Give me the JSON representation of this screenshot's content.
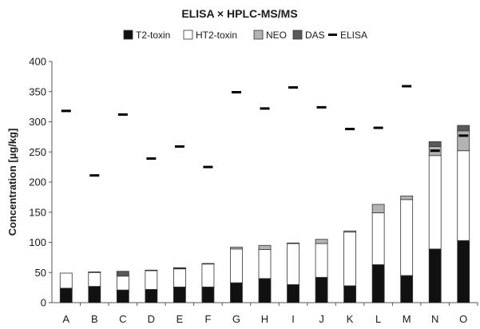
{
  "chart_data": {
    "type": "bar",
    "stacked": true,
    "title": "ELISA × HPLC-MS/MS",
    "xlabel": "",
    "ylabel": "Concentration [µg/kg]",
    "ylim": [
      0,
      400
    ],
    "yticks": [
      0,
      50,
      100,
      150,
      200,
      250,
      300,
      350,
      400
    ],
    "legend_position": "top",
    "categories": [
      "A",
      "B",
      "C",
      "D",
      "E",
      "F",
      "G",
      "H",
      "I",
      "J",
      "K",
      "L",
      "M",
      "N",
      "O"
    ],
    "series": [
      {
        "name": "T2-toxin",
        "color": "#111111",
        "values": [
          24,
          27,
          21,
          22,
          26,
          26,
          33,
          40,
          30,
          42,
          28,
          63,
          45,
          89,
          103
        ]
      },
      {
        "name": "HT2-toxin",
        "color": "#ffffff",
        "values": [
          25,
          23,
          23,
          31,
          30,
          38,
          56,
          48,
          68,
          56,
          89,
          86,
          126,
          155,
          149
        ]
      },
      {
        "name": "NEO",
        "color": "#b3b3b3",
        "values": [
          0,
          1,
          0,
          1,
          1,
          1,
          3,
          7,
          1,
          7,
          2,
          14,
          6,
          15,
          33
        ]
      },
      {
        "name": "DAS",
        "color": "#5a5a5a",
        "values": [
          0,
          0,
          8,
          0,
          1,
          0,
          0,
          0,
          0,
          0,
          0,
          0,
          0,
          8,
          9
        ]
      }
    ],
    "markers": {
      "name": "ELISA",
      "type": "dash",
      "color": "#000000",
      "values": [
        318,
        211,
        312,
        239,
        259,
        225,
        349,
        322,
        357,
        324,
        288,
        290,
        359,
        252,
        277
      ]
    },
    "legend": [
      "T2-toxin",
      "HT2-toxin",
      "NEO",
      "DAS",
      "ELISA"
    ]
  }
}
